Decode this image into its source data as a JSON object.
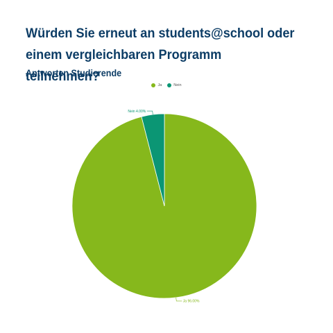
{
  "title": "Würden Sie erneut an students@school oder einem vergleichbaren Programm teilnehmen?",
  "subtitle": "Antworten Studierende",
  "chart_data": {
    "type": "pie",
    "categories": [
      "Ja",
      "Nein"
    ],
    "values": [
      96.0,
      4.0
    ],
    "colors": [
      "#86b81c",
      "#0b9674"
    ],
    "data_labels": [
      "Ja 96.00%",
      "Nein 4.00%"
    ],
    "legend": "top-center"
  }
}
